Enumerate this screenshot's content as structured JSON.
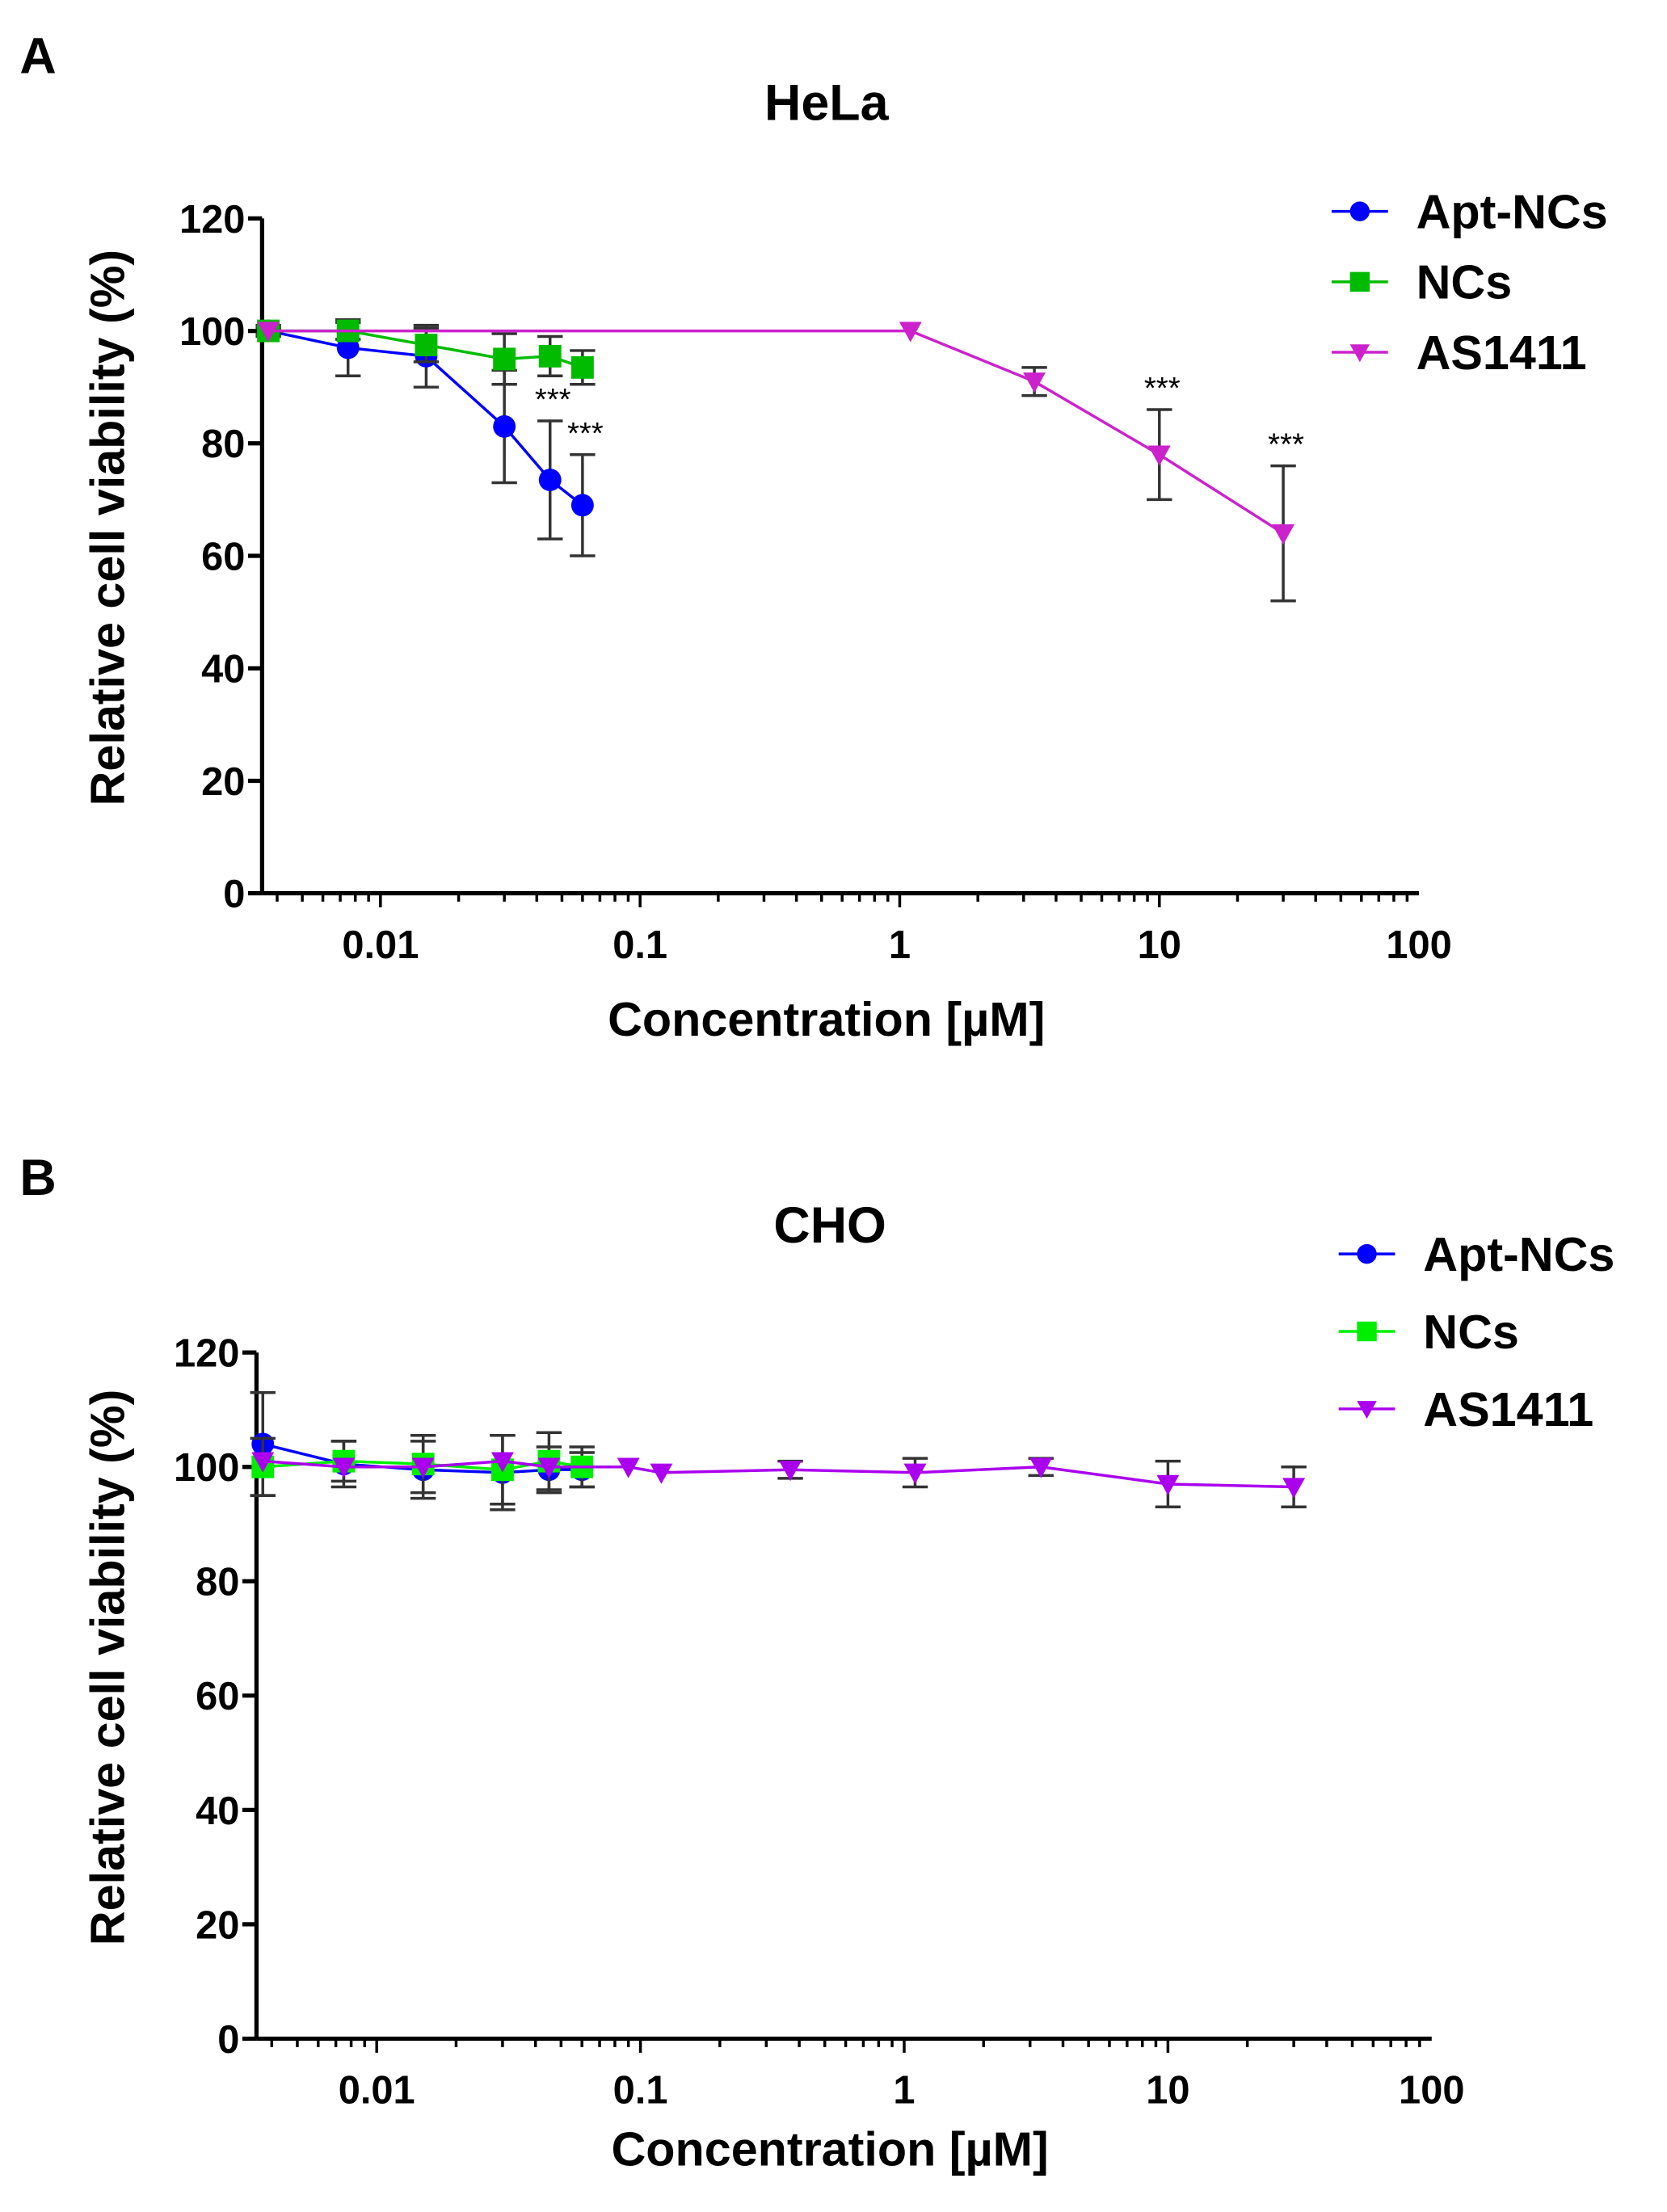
{
  "chart_data": [
    {
      "panel": "A",
      "type": "line",
      "title": "HeLa",
      "xlabel": "Concentration [µM]",
      "ylabel": "Relative cell viability (%)",
      "xscale": "log",
      "xlim": [
        0.0035,
        100
      ],
      "ylim": [
        0,
        120
      ],
      "xticks": [
        "0.01",
        "0.1",
        "1",
        "10",
        "100"
      ],
      "yticks": [
        "0",
        "20",
        "40",
        "60",
        "80",
        "100",
        "120"
      ],
      "legend_position": "top-right",
      "series": [
        {
          "name": "Apt-NCs",
          "color": "#0000ff",
          "marker": "circle",
          "x": [
            0.0037,
            0.0075,
            0.015,
            0.03,
            0.045,
            0.06
          ],
          "y": [
            100,
            97,
            95.5,
            83,
            73.5,
            69
          ],
          "err": [
            1,
            5,
            5.5,
            10,
            10.5,
            9
          ],
          "sig": [
            "",
            "",
            "",
            "",
            "***",
            "***"
          ]
        },
        {
          "name": "NCs",
          "color": "#00bb00",
          "marker": "square",
          "x": [
            0.0037,
            0.0075,
            0.015,
            0.03,
            0.045,
            0.06
          ],
          "y": [
            100,
            100,
            97.5,
            95,
            95.5,
            93.5
          ],
          "err": [
            0.5,
            1.5,
            3,
            4.5,
            3.5,
            3
          ],
          "sig": [
            "",
            "",
            "",
            "",
            "",
            ""
          ]
        },
        {
          "name": "AS1411",
          "color": "#cc22cc",
          "marker": "triangle-down",
          "x": [
            0.0037,
            1.1,
            3.3,
            10,
            30
          ],
          "y": [
            100,
            100,
            91,
            78,
            64
          ],
          "err": [
            0,
            0,
            2.5,
            8,
            12
          ],
          "sig": [
            "",
            "",
            "",
            "***",
            "***"
          ]
        }
      ]
    },
    {
      "panel": "B",
      "type": "line",
      "title": "CHO",
      "xlabel": "Concentration [µM]",
      "ylabel": "Relative cell viability (%)",
      "xscale": "log",
      "xlim": [
        0.0035,
        100
      ],
      "ylim": [
        0,
        120
      ],
      "xticks": [
        "0.01",
        "0.1",
        "1",
        "10",
        "100"
      ],
      "yticks": [
        "0",
        "20",
        "40",
        "60",
        "80",
        "100",
        "120"
      ],
      "legend_position": "top-right",
      "series": [
        {
          "name": "Apt-NCs",
          "color": "#0000ff",
          "marker": "circle",
          "x": [
            0.0037,
            0.0075,
            0.015,
            0.03,
            0.045,
            0.06
          ],
          "y": [
            104,
            100.5,
            99.5,
            99,
            99.5,
            99.5
          ],
          "err": [
            9,
            4,
            5,
            6.5,
            4,
            3
          ],
          "sig": [
            "",
            "",
            "",
            "",
            "",
            ""
          ]
        },
        {
          "name": "NCs",
          "color": "#00ee00",
          "marker": "square",
          "x": [
            0.0037,
            0.0075,
            0.015,
            0.03,
            0.045,
            0.06
          ],
          "y": [
            100,
            101,
            100.5,
            99.5,
            101,
            100
          ],
          "err": [
            5,
            3.5,
            5,
            6,
            5,
            3.5
          ],
          "sig": [
            "",
            "",
            "",
            "",
            "",
            ""
          ]
        },
        {
          "name": "AS1411",
          "color": "#aa00ee",
          "marker": "triangle-down",
          "x": [
            0.0037,
            0.0075,
            0.015,
            0.03,
            0.045,
            0.09,
            0.12,
            0.37,
            1.1,
            3.3,
            10,
            30
          ],
          "y": [
            101,
            100,
            100,
            101,
            100,
            100,
            99,
            99.5,
            99,
            100,
            97,
            96.5
          ],
          "err": [
            0,
            0,
            0,
            0,
            0,
            0,
            0,
            1.5,
            2.5,
            1.5,
            4,
            3.5
          ],
          "sig": [
            "",
            "",
            "",
            "",
            "",
            "",
            "",
            "",
            "",
            "",
            "",
            ""
          ]
        }
      ]
    }
  ],
  "panel_labels": [
    "A",
    "B"
  ]
}
